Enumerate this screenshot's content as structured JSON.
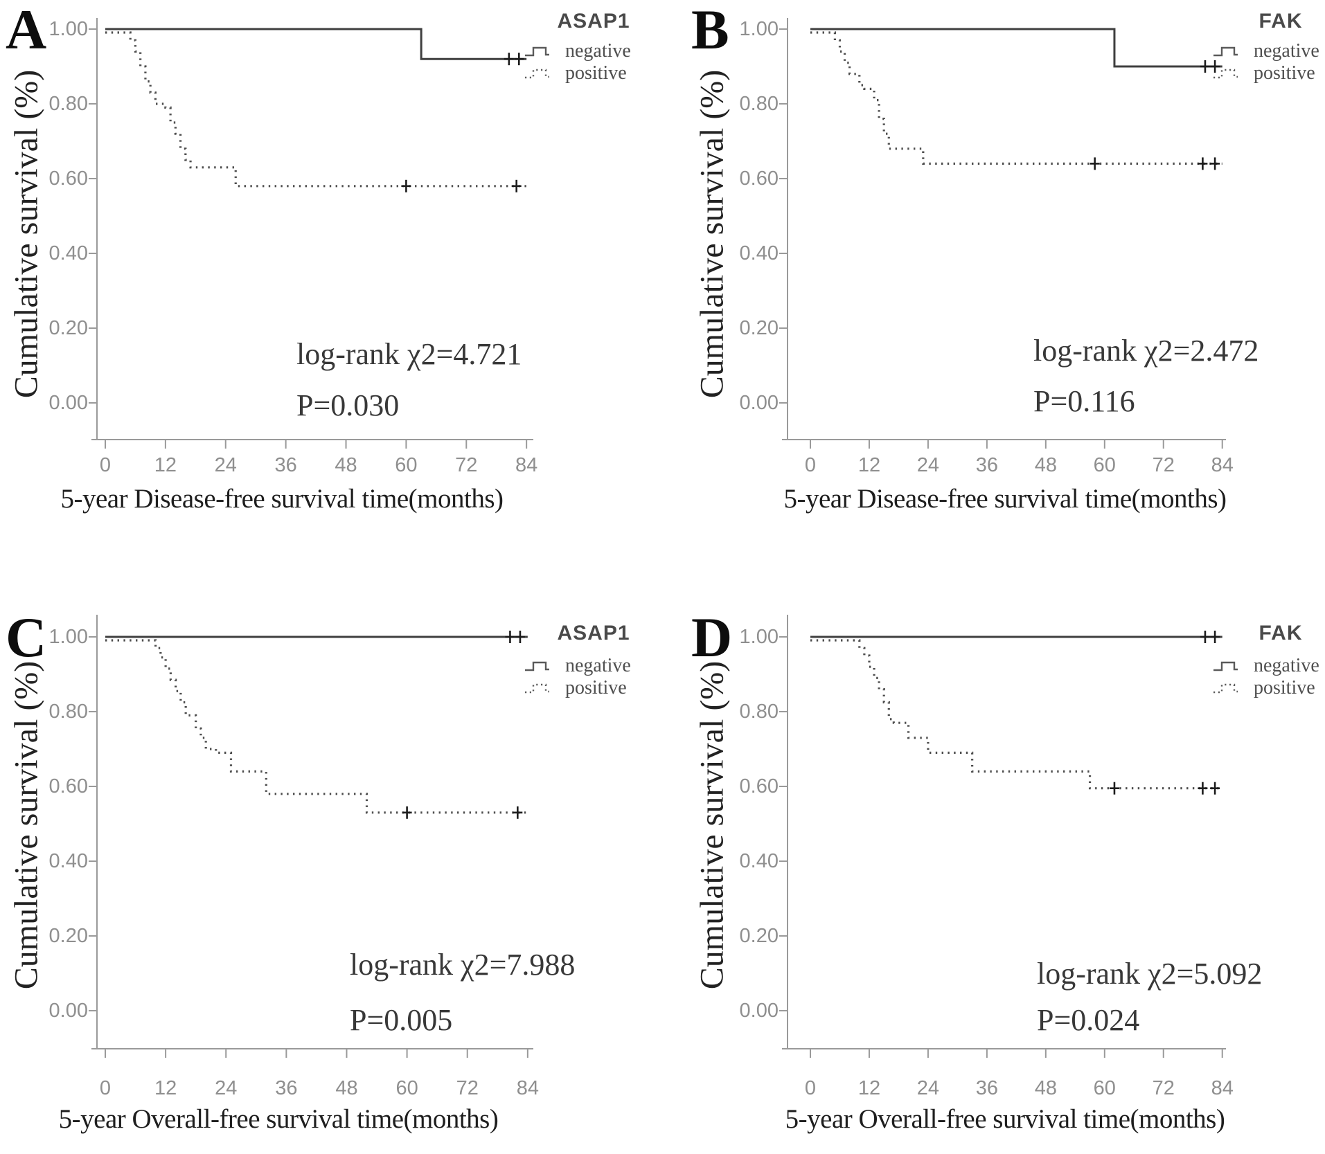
{
  "figure": {
    "background": "#ffffff",
    "curve_color": "#3f3f3f",
    "axis_color": "#9a9a9a",
    "tick_label_color": "#8f8f8f",
    "text_color": "#2b2b2b"
  },
  "chart_data": [
    {
      "type": "line",
      "subtype": "kaplan-meier",
      "panel": "A",
      "gene": "ASAP1",
      "x_label": "5-year Disease-free survival time(months)",
      "y_label": "Cumulative survival (%)",
      "xlim": [
        0,
        84
      ],
      "ylim": [
        0,
        1
      ],
      "x_ticks": [
        0,
        12,
        24,
        36,
        48,
        60,
        72,
        84
      ],
      "y_tick_labels": [
        "0.00",
        "0.20",
        "0.40",
        "0.60",
        "0.80",
        "1.00"
      ],
      "stats": {
        "line1": "log-rank χ2=4.721",
        "line2": "P=0.030"
      },
      "legend": {
        "title": "ASAP1",
        "position": "top-right",
        "items": [
          {
            "label": "negative",
            "style": "solid"
          },
          {
            "label": "positive",
            "style": "dotted"
          }
        ]
      },
      "series": [
        {
          "name": "negative",
          "style": "solid",
          "steps": [
            [
              0,
              1.0
            ],
            [
              63,
              0.92
            ],
            [
              84,
              0.92
            ]
          ],
          "censors": [
            [
              80.5,
              0.92
            ],
            [
              82.5,
              0.92
            ]
          ]
        },
        {
          "name": "positive",
          "style": "dotted",
          "steps": [
            [
              0,
              1.0
            ],
            [
              5,
              0.97
            ],
            [
              6,
              0.94
            ],
            [
              7,
              0.9
            ],
            [
              8,
              0.86
            ],
            [
              9,
              0.83
            ],
            [
              10,
              0.8
            ],
            [
              12,
              0.79
            ],
            [
              13,
              0.75
            ],
            [
              14,
              0.72
            ],
            [
              15,
              0.68
            ],
            [
              16,
              0.65
            ],
            [
              17,
              0.63
            ],
            [
              26,
              0.58
            ],
            [
              84,
              0.58
            ]
          ],
          "censors": [
            [
              60,
              0.58
            ],
            [
              82,
              0.58
            ]
          ]
        }
      ]
    },
    {
      "type": "line",
      "subtype": "kaplan-meier",
      "panel": "B",
      "gene": "FAK",
      "x_label": "5-year Disease-free survival time(months)",
      "y_label": "Cumulative survival (%)",
      "xlim": [
        0,
        84
      ],
      "ylim": [
        0,
        1
      ],
      "x_ticks": [
        0,
        12,
        24,
        36,
        48,
        60,
        72,
        84
      ],
      "y_tick_labels": [
        "0.00",
        "0.20",
        "0.40",
        "0.60",
        "0.80",
        "1.00"
      ],
      "stats": {
        "line1": "log-rank χ2=2.472",
        "line2": "P=0.116"
      },
      "legend": {
        "title": "FAK",
        "position": "top-right",
        "items": [
          {
            "label": "negative",
            "style": "solid"
          },
          {
            "label": "positive",
            "style": "dotted"
          }
        ]
      },
      "series": [
        {
          "name": "negative",
          "style": "solid",
          "steps": [
            [
              0,
              1.0
            ],
            [
              62,
              0.9
            ],
            [
              84,
              0.9
            ]
          ],
          "censors": [
            [
              80.5,
              0.9
            ],
            [
              82.5,
              0.9
            ]
          ]
        },
        {
          "name": "positive",
          "style": "dotted",
          "steps": [
            [
              0,
              1.0
            ],
            [
              5,
              0.97
            ],
            [
              6,
              0.94
            ],
            [
              7,
              0.91
            ],
            [
              8,
              0.88
            ],
            [
              10,
              0.85
            ],
            [
              11,
              0.84
            ],
            [
              13,
              0.81
            ],
            [
              14,
              0.76
            ],
            [
              15,
              0.72
            ],
            [
              16,
              0.68
            ],
            [
              23,
              0.64
            ],
            [
              84,
              0.64
            ]
          ],
          "censors": [
            [
              58,
              0.64
            ],
            [
              80,
              0.64
            ],
            [
              82.5,
              0.64
            ]
          ]
        }
      ]
    },
    {
      "type": "line",
      "subtype": "kaplan-meier",
      "panel": "C",
      "gene": "ASAP1",
      "x_label": "5-year Overall-free survival time(months)",
      "y_label": "Cumulative survival (%)",
      "xlim": [
        0,
        84
      ],
      "ylim": [
        0,
        1
      ],
      "x_ticks": [
        0,
        12,
        24,
        36,
        48,
        60,
        72,
        84
      ],
      "y_tick_labels": [
        "0.00",
        "0.20",
        "0.40",
        "0.60",
        "0.80",
        "1.00"
      ],
      "stats": {
        "line1": "log-rank χ2=7.988",
        "line2": "P=0.005"
      },
      "legend": {
        "title": "ASAP1",
        "position": "top-right",
        "items": [
          {
            "label": "negative",
            "style": "solid"
          },
          {
            "label": "positive",
            "style": "dotted"
          }
        ]
      },
      "series": [
        {
          "name": "negative",
          "style": "solid",
          "steps": [
            [
              0,
              1.0
            ],
            [
              84,
              1.0
            ]
          ],
          "censors": [
            [
              80.5,
              1.0
            ],
            [
              82.5,
              1.0
            ]
          ]
        },
        {
          "name": "positive",
          "style": "dotted",
          "steps": [
            [
              0,
              1.0
            ],
            [
              10,
              0.97
            ],
            [
              11,
              0.945
            ],
            [
              12,
              0.915
            ],
            [
              13,
              0.885
            ],
            [
              14,
              0.855
            ],
            [
              15,
              0.825
            ],
            [
              16,
              0.79
            ],
            [
              18,
              0.755
            ],
            [
              19,
              0.73
            ],
            [
              20,
              0.7
            ],
            [
              22,
              0.69
            ],
            [
              25,
              0.64
            ],
            [
              32,
              0.58
            ],
            [
              52,
              0.53
            ],
            [
              84,
              0.53
            ]
          ],
          "censors": [
            [
              60,
              0.53
            ],
            [
              82,
              0.53
            ]
          ]
        }
      ]
    },
    {
      "type": "line",
      "subtype": "kaplan-meier",
      "panel": "D",
      "gene": "FAK",
      "x_label": "5-year Overall-free survival time(months)",
      "y_label": "Cumulative survival (%)",
      "xlim": [
        0,
        84
      ],
      "ylim": [
        0,
        1
      ],
      "x_ticks": [
        0,
        12,
        24,
        36,
        48,
        60,
        72,
        84
      ],
      "y_tick_labels": [
        "0.00",
        "0.20",
        "0.40",
        "0.60",
        "0.80",
        "1.00"
      ],
      "stats": {
        "line1": "log-rank χ2=5.092",
        "line2": "P=0.024"
      },
      "legend": {
        "title": "FAK",
        "position": "top-right",
        "items": [
          {
            "label": "negative",
            "style": "solid"
          },
          {
            "label": "positive",
            "style": "dotted"
          }
        ]
      },
      "series": [
        {
          "name": "negative",
          "style": "solid",
          "steps": [
            [
              0,
              1.0
            ],
            [
              84,
              1.0
            ]
          ],
          "censors": [
            [
              80.5,
              1.0
            ],
            [
              82.5,
              1.0
            ]
          ]
        },
        {
          "name": "positive",
          "style": "dotted",
          "steps": [
            [
              0,
              1.0
            ],
            [
              10,
              0.97
            ],
            [
              11,
              0.95
            ],
            [
              12,
              0.92
            ],
            [
              13,
              0.89
            ],
            [
              14,
              0.86
            ],
            [
              15,
              0.825
            ],
            [
              16,
              0.78
            ],
            [
              17,
              0.77
            ],
            [
              20,
              0.73
            ],
            [
              24,
              0.69
            ],
            [
              33,
              0.64
            ],
            [
              57,
              0.595
            ],
            [
              84,
              0.595
            ]
          ],
          "censors": [
            [
              62,
              0.595
            ],
            [
              80,
              0.595
            ],
            [
              82.5,
              0.595
            ]
          ]
        }
      ]
    }
  ]
}
